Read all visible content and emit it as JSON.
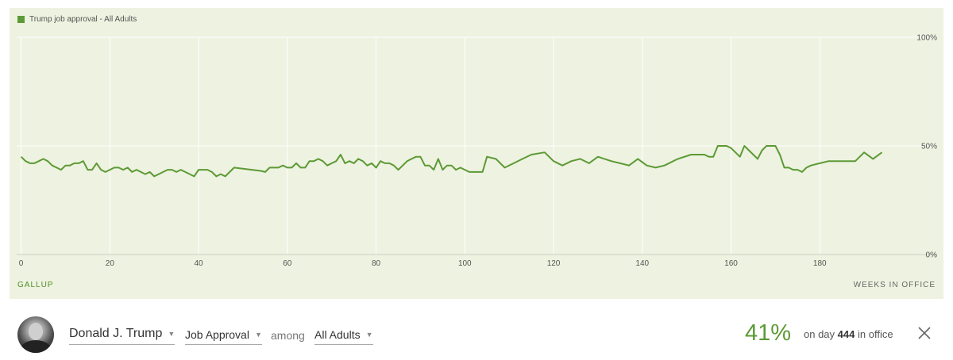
{
  "legend": {
    "label": "Trump job approval - All Adults",
    "color": "#5c9a35"
  },
  "source_label": "GALLUP",
  "x_axis_title": "WEEKS IN OFFICE",
  "info_bar": {
    "president": "Donald J. Trump",
    "metric": "Job Approval",
    "among": "among",
    "population": "All Adults",
    "current_value": "41%",
    "day_prefix": "on day",
    "day_number": "444",
    "day_suffix": "in office"
  },
  "chart_data": {
    "type": "line",
    "xlabel": "WEEKS IN OFFICE",
    "ylabel": "",
    "xlim": [
      -1,
      200
    ],
    "ylim": [
      0,
      100
    ],
    "x_ticks": [
      0,
      20,
      40,
      60,
      80,
      100,
      120,
      140,
      160,
      180
    ],
    "y_ticks": [
      {
        "value": 0,
        "label": "0%"
      },
      {
        "value": 50,
        "label": "50%"
      },
      {
        "value": 100,
        "label": "100%"
      }
    ],
    "grid": true,
    "series": [
      {
        "name": "Trump job approval - All Adults",
        "color": "#5c9a35",
        "points": [
          [
            0,
            45
          ],
          [
            1,
            43
          ],
          [
            2,
            42
          ],
          [
            3,
            42
          ],
          [
            4,
            43
          ],
          [
            5,
            44
          ],
          [
            6,
            43
          ],
          [
            7,
            41
          ],
          [
            8,
            40
          ],
          [
            9,
            39
          ],
          [
            10,
            41
          ],
          [
            11,
            41
          ],
          [
            12,
            42
          ],
          [
            13,
            42
          ],
          [
            14,
            43
          ],
          [
            15,
            39
          ],
          [
            16,
            39
          ],
          [
            17,
            42
          ],
          [
            18,
            39
          ],
          [
            19,
            38
          ],
          [
            20,
            39
          ],
          [
            21,
            40
          ],
          [
            22,
            40
          ],
          [
            23,
            39
          ],
          [
            24,
            40
          ],
          [
            25,
            38
          ],
          [
            26,
            39
          ],
          [
            27,
            38
          ],
          [
            28,
            37
          ],
          [
            29,
            38
          ],
          [
            30,
            36
          ],
          [
            31,
            37
          ],
          [
            32,
            38
          ],
          [
            33,
            39
          ],
          [
            34,
            39
          ],
          [
            35,
            38
          ],
          [
            36,
            39
          ],
          [
            37,
            38
          ],
          [
            38,
            37
          ],
          [
            39,
            36
          ],
          [
            40,
            39
          ],
          [
            41,
            39
          ],
          [
            42,
            39
          ],
          [
            43,
            38
          ],
          [
            44,
            36
          ],
          [
            45,
            37
          ],
          [
            46,
            36
          ],
          [
            47,
            38
          ],
          [
            48,
            40
          ],
          [
            50,
            39.5
          ],
          [
            52,
            39
          ],
          [
            54,
            38.5
          ],
          [
            55,
            38
          ],
          [
            56,
            40
          ],
          [
            57,
            40
          ],
          [
            58,
            40
          ],
          [
            59,
            41
          ],
          [
            60,
            40
          ],
          [
            61,
            40
          ],
          [
            62,
            42
          ],
          [
            63,
            40
          ],
          [
            64,
            40
          ],
          [
            65,
            43
          ],
          [
            66,
            43
          ],
          [
            67,
            44
          ],
          [
            68,
            43
          ],
          [
            69,
            41
          ],
          [
            70,
            42
          ],
          [
            71,
            43
          ],
          [
            72,
            46
          ],
          [
            73,
            42
          ],
          [
            74,
            43
          ],
          [
            75,
            42
          ],
          [
            76,
            44
          ],
          [
            77,
            43
          ],
          [
            78,
            41
          ],
          [
            79,
            42
          ],
          [
            80,
            40
          ],
          [
            81,
            43
          ],
          [
            82,
            42
          ],
          [
            83,
            42
          ],
          [
            84,
            41
          ],
          [
            85,
            39
          ],
          [
            86,
            41
          ],
          [
            87,
            43
          ],
          [
            88,
            44
          ],
          [
            89,
            45
          ],
          [
            90,
            45
          ],
          [
            91,
            41
          ],
          [
            92,
            41
          ],
          [
            93,
            39
          ],
          [
            94,
            44
          ],
          [
            95,
            39
          ],
          [
            96,
            41
          ],
          [
            97,
            41
          ],
          [
            98,
            39
          ],
          [
            99,
            40
          ],
          [
            100,
            39
          ],
          [
            101,
            38
          ],
          [
            102,
            38
          ],
          [
            103,
            38
          ],
          [
            104,
            38
          ],
          [
            105,
            45
          ],
          [
            107,
            44
          ],
          [
            109,
            40
          ],
          [
            111,
            42
          ],
          [
            113,
            44
          ],
          [
            115,
            46
          ],
          [
            118,
            47
          ],
          [
            120,
            43
          ],
          [
            122,
            41
          ],
          [
            124,
            43
          ],
          [
            126,
            44
          ],
          [
            128,
            42
          ],
          [
            130,
            45
          ],
          [
            133,
            43
          ],
          [
            135,
            42
          ],
          [
            137,
            41
          ],
          [
            139,
            44
          ],
          [
            141,
            41
          ],
          [
            143,
            40
          ],
          [
            145,
            41
          ],
          [
            148,
            44
          ],
          [
            151,
            46
          ],
          [
            154,
            46
          ],
          [
            155,
            45
          ],
          [
            156,
            45
          ],
          [
            157,
            50
          ],
          [
            158,
            50
          ],
          [
            159,
            50
          ],
          [
            160,
            49
          ],
          [
            161,
            47
          ],
          [
            162,
            45
          ],
          [
            163,
            50
          ],
          [
            164,
            48
          ],
          [
            165,
            46
          ],
          [
            166,
            44
          ],
          [
            167,
            48
          ],
          [
            168,
            50
          ],
          [
            169,
            50
          ],
          [
            170,
            50
          ],
          [
            171,
            46
          ],
          [
            172,
            40
          ],
          [
            173,
            40
          ],
          [
            174,
            39
          ],
          [
            175,
            39
          ],
          [
            176,
            38
          ],
          [
            177,
            40
          ],
          [
            178,
            41
          ],
          [
            180,
            42
          ],
          [
            182,
            43
          ],
          [
            184,
            43
          ],
          [
            186,
            43
          ],
          [
            188,
            43
          ],
          [
            190,
            47
          ],
          [
            192,
            44
          ],
          [
            194,
            47
          ]
        ]
      }
    ]
  }
}
